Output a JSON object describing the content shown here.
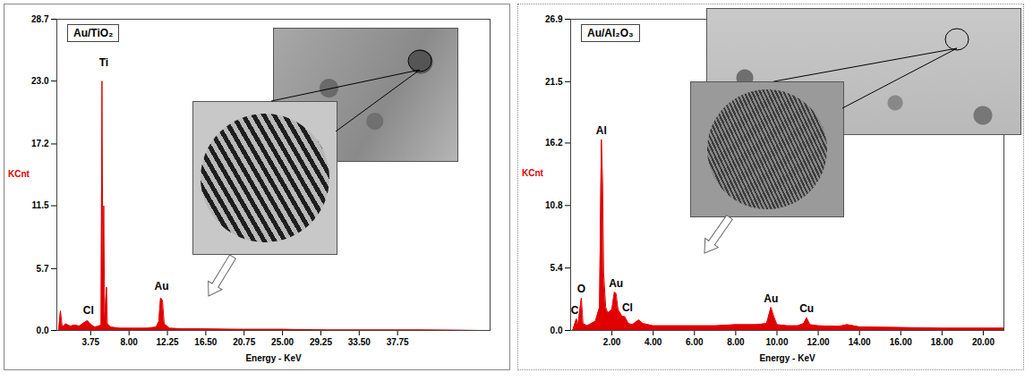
{
  "chart_data": [
    {
      "type": "area",
      "title": "Au/TiO₂",
      "x_label": "Energy - KeV",
      "y_label": "KCnt",
      "color": "#e00000",
      "x": [
        0.2,
        0.4,
        0.6,
        1.0,
        1.5,
        2.0,
        2.5,
        3.0,
        3.4,
        3.7,
        4.2,
        4.6,
        4.9,
        5.0,
        5.1,
        5.2,
        5.3,
        5.5,
        5.6,
        6.0,
        7.0,
        8.0,
        9.0,
        10.0,
        11.0,
        11.3,
        11.5,
        11.7,
        11.9,
        12.5,
        14.0,
        16.0,
        20.0,
        25.0,
        30.0,
        35.0,
        40.0,
        47.0
      ],
      "values": [
        0,
        1.8,
        0.3,
        0.6,
        0.4,
        0.5,
        0.4,
        0.7,
        0.9,
        0.6,
        0.3,
        0.4,
        0.5,
        23.0,
        5.0,
        11.5,
        1.0,
        4.0,
        0.6,
        0.3,
        0.2,
        0.2,
        0.2,
        0.2,
        0.3,
        0.8,
        3.0,
        2.8,
        0.6,
        0.2,
        0.15,
        0.15,
        0.1,
        0.1,
        0.05,
        0.05,
        0.05,
        0
      ],
      "xlim": [
        0,
        48
      ],
      "xticks": [
        3.75,
        {
          "value": 8,
          "label": "8.00"
        },
        12.25,
        {
          "value": 16.5,
          "label": "16.50"
        },
        20.75,
        {
          "value": 25,
          "label": "25.00"
        },
        29.25,
        {
          "value": 33.5,
          "label": "33.50"
        },
        37.75
      ],
      "ylim": [
        0,
        28.7
      ],
      "yticks": [
        {
          "value": 0,
          "label": "0.0"
        },
        5.7,
        11.5,
        17.2,
        {
          "value": 23,
          "label": "23.0"
        },
        28.7
      ],
      "annotations": [
        {
          "text": "Cl",
          "x": 3.5,
          "y": 1.4
        },
        {
          "text": "Ti",
          "x": 5.2,
          "y": 24.2
        },
        {
          "text": "Au",
          "x": 11.6,
          "y": 3.6
        }
      ]
    },
    {
      "type": "area",
      "title": "Au/Al₂O₃",
      "x_label": "Energy - KeV",
      "y_label": "KCnt",
      "color": "#e00000",
      "x": [
        0.1,
        0.28,
        0.35,
        0.52,
        0.6,
        0.8,
        1.0,
        1.2,
        1.4,
        1.49,
        1.55,
        1.6,
        1.7,
        1.8,
        2.0,
        2.12,
        2.2,
        2.3,
        2.5,
        2.62,
        2.8,
        3.0,
        3.3,
        3.5,
        4.0,
        5.0,
        6.0,
        7.0,
        8.0,
        9.0,
        9.5,
        9.71,
        9.85,
        10.0,
        10.5,
        11.0,
        11.3,
        11.44,
        11.6,
        12.0,
        13.0,
        13.4,
        14.0,
        16.0,
        18.0,
        20.0,
        21.0
      ],
      "values": [
        0,
        1.0,
        0.4,
        2.8,
        0.6,
        0.4,
        0.6,
        0.8,
        2.0,
        16.5,
        13.0,
        5.0,
        2.0,
        1.5,
        1.8,
        3.3,
        3.2,
        1.8,
        1.2,
        1.2,
        0.6,
        0.5,
        0.9,
        0.6,
        0.4,
        0.4,
        0.4,
        0.4,
        0.5,
        0.5,
        0.6,
        2.0,
        1.2,
        0.5,
        0.4,
        0.4,
        0.6,
        1.1,
        0.5,
        0.4,
        0.35,
        0.5,
        0.3,
        0.25,
        0.2,
        0.2,
        0.2
      ],
      "xlim": [
        0,
        21
      ],
      "xticks": [
        {
          "value": 2,
          "label": "2.00"
        },
        {
          "value": 4,
          "label": "4.00"
        },
        {
          "value": 6,
          "label": "6.00"
        },
        {
          "value": 8,
          "label": "8.00"
        },
        {
          "value": 10,
          "label": "10.00"
        },
        {
          "value": 12,
          "label": "12.00"
        },
        {
          "value": 14,
          "label": "14.00"
        },
        {
          "value": 16,
          "label": "16.00"
        },
        {
          "value": 18,
          "label": "18.00"
        },
        {
          "value": 20,
          "label": "20.00"
        }
      ],
      "ylim": [
        0,
        26.9
      ],
      "yticks": [
        {
          "value": 0,
          "label": "0.0"
        },
        5.4,
        10.8,
        16.2,
        21.5,
        26.9
      ],
      "annotations": [
        {
          "text": "C",
          "x": 0.2,
          "y": 1.3
        },
        {
          "text": "O",
          "x": 0.52,
          "y": 3.1
        },
        {
          "text": "Al",
          "x": 1.49,
          "y": 16.8
        },
        {
          "text": "Au",
          "x": 2.2,
          "y": 3.6
        },
        {
          "text": "Cl",
          "x": 2.75,
          "y": 1.5
        },
        {
          "text": "Au",
          "x": 9.71,
          "y": 2.3
        },
        {
          "text": "Cu",
          "x": 11.44,
          "y": 1.4
        }
      ]
    }
  ]
}
